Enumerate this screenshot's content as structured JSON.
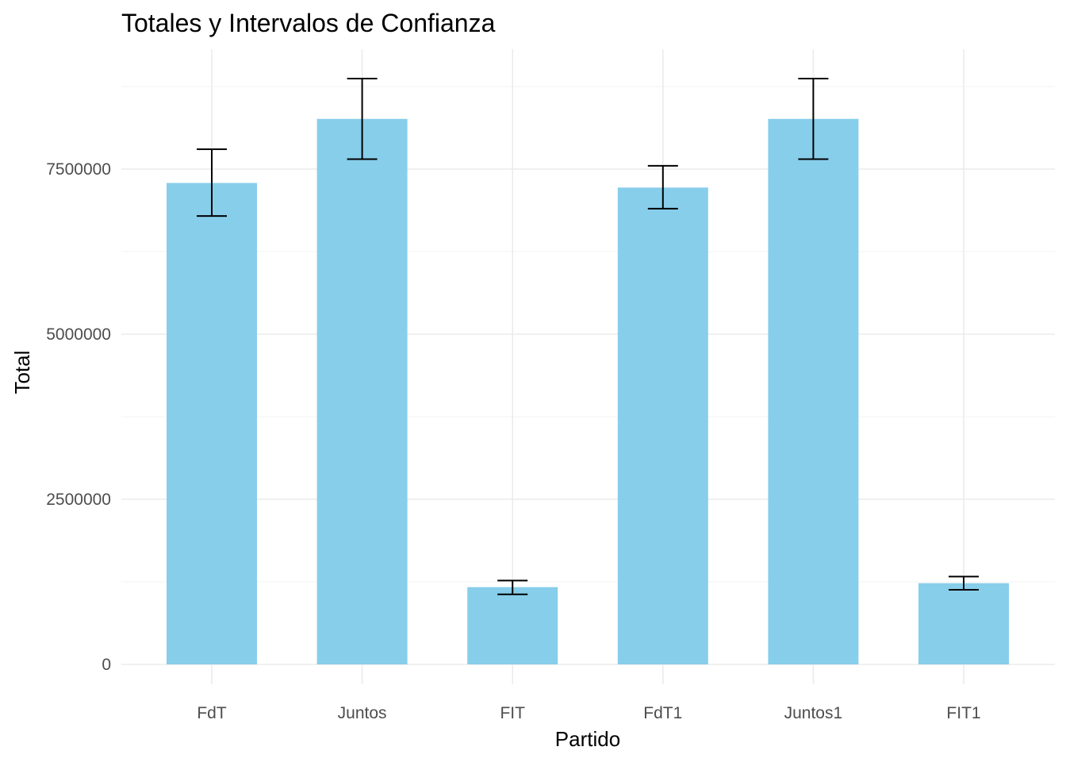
{
  "chart_data": {
    "type": "bar",
    "title": "Totales y Intervalos de Confianza",
    "xlabel": "Partido",
    "ylabel": "Total",
    "categories": [
      "FdT",
      "Juntos",
      "FIT",
      "FdT1",
      "Juntos1",
      "FIT1"
    ],
    "values": [
      7290000,
      8260000,
      1170000,
      7220000,
      8260000,
      1230000
    ],
    "ci_lower": [
      6790000,
      7650000,
      1060000,
      6900000,
      7650000,
      1130000
    ],
    "ci_upper": [
      7800000,
      8870000,
      1270000,
      7550000,
      8870000,
      1330000
    ],
    "ylim": [
      0,
      9000000
    ],
    "y_ticks": [
      0,
      2500000,
      5000000,
      7500000
    ],
    "y_tick_labels": [
      "0",
      "2500000",
      "5000000",
      "7500000"
    ],
    "grid": true,
    "colors": {
      "bar": "#87CEEB",
      "errorbar": "#000000",
      "grid_major": "#ebebeb",
      "grid_minor": "#f5f5f5"
    }
  }
}
